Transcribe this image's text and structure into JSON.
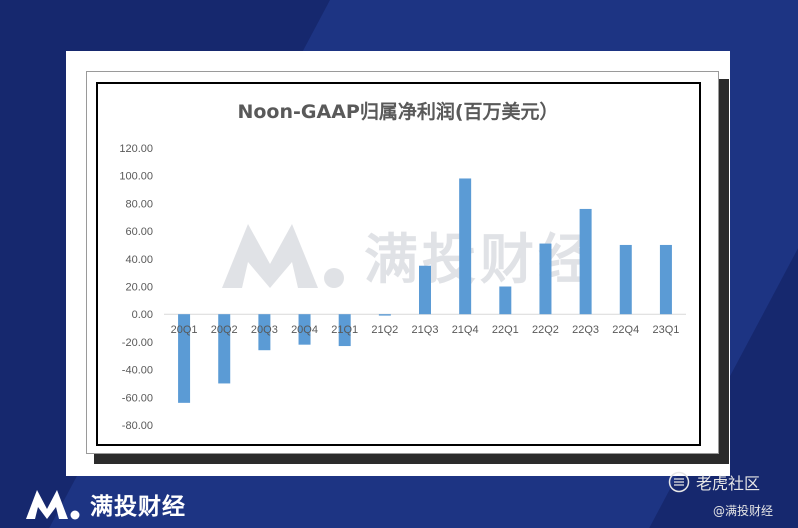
{
  "brand": {
    "name": "满投财经"
  },
  "watermark": {
    "text": "满投财经"
  },
  "footer": {
    "community": "老虎社区",
    "handle": "@满投财经"
  },
  "colors": {
    "bar": "#5b9bd5",
    "background": "#16286e"
  },
  "chart_data": {
    "type": "bar",
    "title": "Noon-GAAP归属净利润(百万美元）",
    "categories": [
      "20Q1",
      "20Q2",
      "20Q3",
      "20Q4",
      "21Q1",
      "21Q2",
      "21Q3",
      "21Q4",
      "22Q1",
      "22Q2",
      "22Q3",
      "22Q4",
      "23Q1"
    ],
    "values": [
      -64,
      -50,
      -26,
      -22,
      -23,
      -1,
      35,
      98,
      20,
      51,
      76,
      50,
      50
    ],
    "ylim": [
      -80,
      120
    ],
    "yticks": [
      120,
      100,
      80,
      60,
      40,
      20,
      0,
      -20,
      -40,
      -60,
      -80
    ],
    "ytick_labels": [
      "120.00",
      "100.00",
      "80.00",
      "60.00",
      "40.00",
      "20.00",
      "0.00",
      "-20.00",
      "-40.00",
      "-60.00",
      "-80.00"
    ],
    "grid": false,
    "legend": "none"
  }
}
